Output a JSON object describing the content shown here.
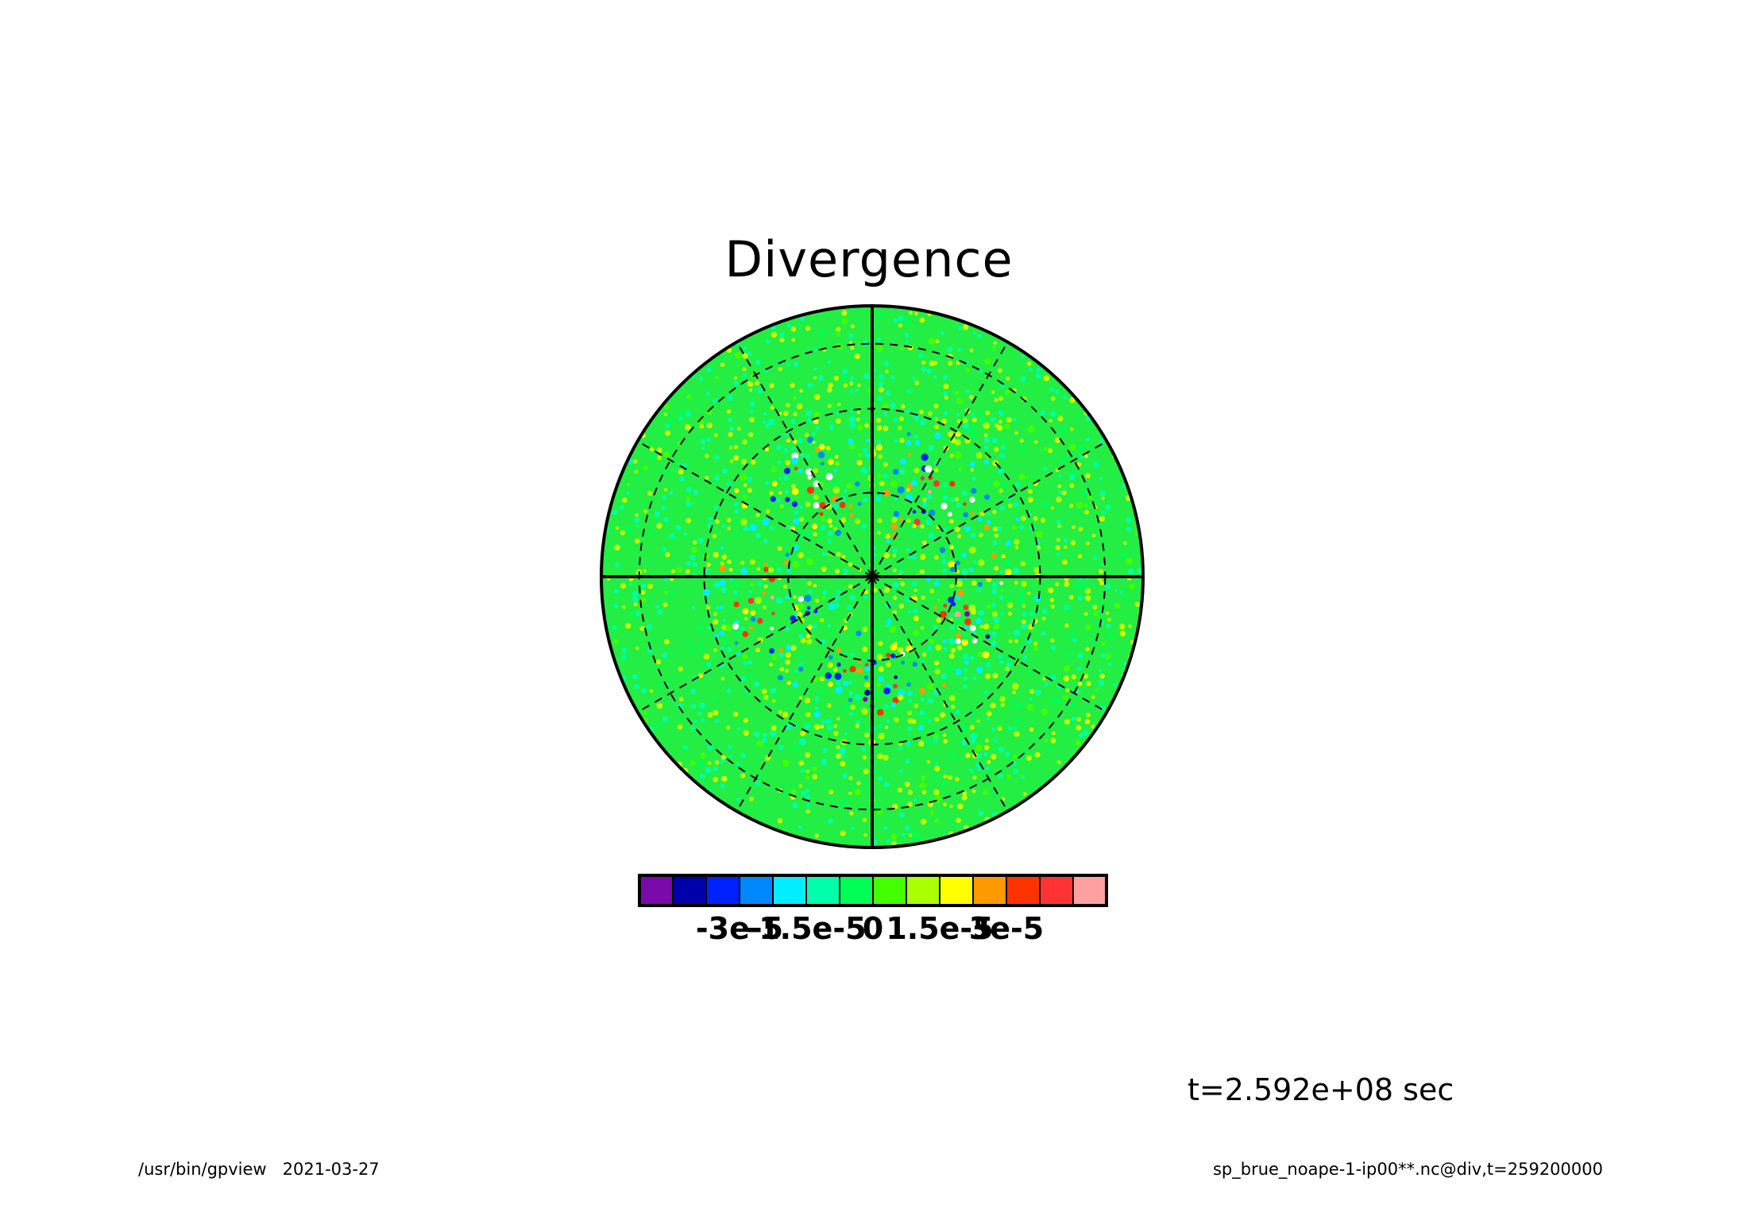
{
  "chart_data": {
    "type": "heatmap",
    "projection": "polar stereographic",
    "title": "Divergence",
    "field": "div",
    "colorbar": {
      "levels": [
        -4.5e-05,
        -3.75e-05,
        -3e-05,
        -2.25e-05,
        -1.5e-05,
        -7.5e-06,
        0,
        7.5e-06,
        1.5e-05,
        2.25e-05,
        3e-05,
        3.75e-05,
        4.5e-05
      ],
      "colors": [
        "#7a0aaa",
        "#0000aa",
        "#0022ff",
        "#0088ff",
        "#00eeff",
        "#00ffaa",
        "#00ff55",
        "#44ff00",
        "#aaff00",
        "#ffff00",
        "#ff9900",
        "#ff3300",
        "#ff3333",
        "#ffa0a0"
      ],
      "tick_labels": [
        "-3e-5",
        "-1.5e-5",
        "0",
        "1.5e-5",
        "3e-5"
      ],
      "tick_values": [
        -3e-05,
        -1.5e-05,
        0,
        1.5e-05,
        3e-05
      ]
    },
    "background_color": "#22ee44",
    "meridians_solid": 4,
    "meridians_dashed": 8,
    "latitude_circles": 3,
    "grid": true
  },
  "annotations": {
    "time": "t=2.592e+08 sec",
    "footer_left": "/usr/bin/gpview   2021-03-27",
    "footer_right": "sp_brue_noape-1-ip00**.nc@div,t=259200000"
  }
}
